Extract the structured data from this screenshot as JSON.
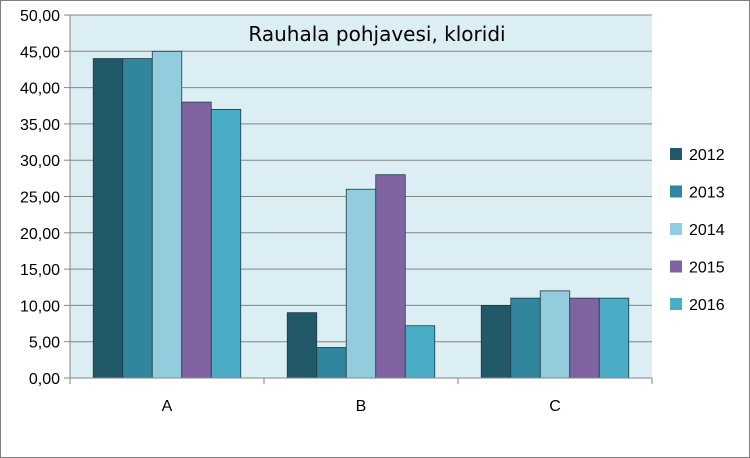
{
  "chart_data": {
    "type": "bar",
    "title": "Rauhala pohjavesi, kloridi",
    "xlabel": "",
    "ylabel": "",
    "categories": [
      "A",
      "B",
      "C"
    ],
    "series": [
      {
        "name": "2012",
        "values": [
          44.0,
          9.0,
          10.0
        ],
        "color": "#215968"
      },
      {
        "name": "2013",
        "values": [
          44.0,
          4.2,
          11.0
        ],
        "color": "#31859c"
      },
      {
        "name": "2014",
        "values": [
          45.0,
          26.0,
          12.0
        ],
        "color": "#93cddd"
      },
      {
        "name": "2015",
        "values": [
          38.0,
          28.0,
          11.0
        ],
        "color": "#8064a2"
      },
      {
        "name": "2016",
        "values": [
          37.0,
          7.2,
          11.0
        ],
        "color": "#4bacc6"
      }
    ],
    "ylim": [
      0,
      50
    ],
    "yticks": [
      "0,00",
      "5,00",
      "10,00",
      "15,00",
      "20,00",
      "25,00",
      "30,00",
      "35,00",
      "40,00",
      "45,00",
      "50,00"
    ],
    "ytick_values": [
      0,
      5,
      10,
      15,
      20,
      25,
      30,
      35,
      40,
      45,
      50
    ],
    "grid": true,
    "legend": "right",
    "plot_background": "#dbeef4"
  }
}
